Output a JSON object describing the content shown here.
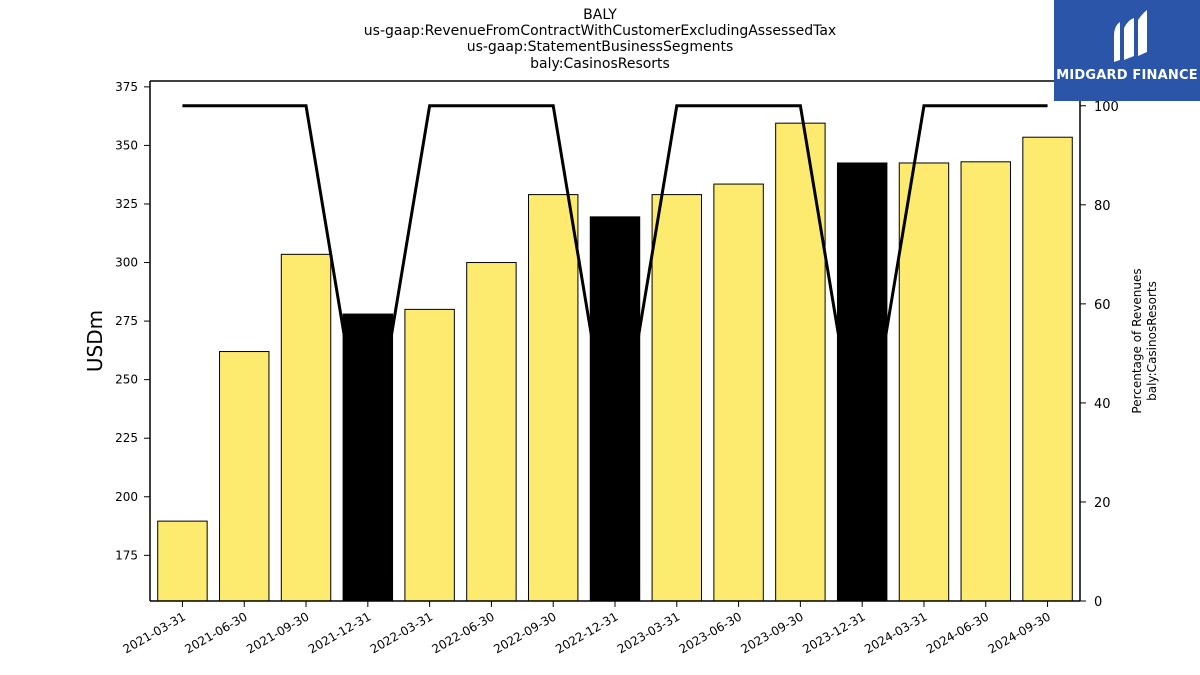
{
  "chart_data": {
    "type": "bar",
    "title_lines": [
      "BALY",
      "us-gaap:RevenueFromContractWithCustomerExcludingAssessedTax",
      "us-gaap:StatementBusinessSegments",
      "baly:CasinosResorts"
    ],
    "ylabel": "USDm",
    "y2label_lines": [
      "Percentage of Revenues",
      "baly:CasinosResorts"
    ],
    "categories": [
      "2021-03-31",
      "2021-06-30",
      "2021-09-30",
      "2021-12-31",
      "2022-03-31",
      "2022-06-30",
      "2022-09-30",
      "2022-12-31",
      "2023-03-31",
      "2023-06-30",
      "2023-09-30",
      "2023-12-31",
      "2024-03-31",
      "2024-06-30",
      "2024-09-30"
    ],
    "values": [
      189.6,
      262.0,
      303.5,
      278.0,
      280.0,
      300.0,
      329.0,
      319.5,
      329.0,
      333.5,
      359.5,
      342.5,
      342.5,
      343.0,
      353.5
    ],
    "highlight": [
      false,
      false,
      false,
      true,
      false,
      false,
      false,
      true,
      false,
      false,
      false,
      true,
      false,
      false,
      false
    ],
    "bar_color": "#fdeb6f",
    "highlight_color": "#000000",
    "ylim": [
      155.5,
      377.5
    ],
    "yticks": [
      175,
      200,
      225,
      250,
      275,
      300,
      325,
      350,
      375
    ],
    "line_series": {
      "values": [
        100,
        100,
        100,
        25,
        100,
        100,
        100,
        25,
        100,
        100,
        100,
        25,
        100,
        100,
        100
      ],
      "color": "#000000"
    },
    "y2lim": [
      0,
      105
    ],
    "y2ticks": [
      0,
      20,
      40,
      60,
      80,
      100
    ]
  },
  "logo": {
    "text": "MIDGARD FINANCE",
    "color": "#2a55a8"
  }
}
